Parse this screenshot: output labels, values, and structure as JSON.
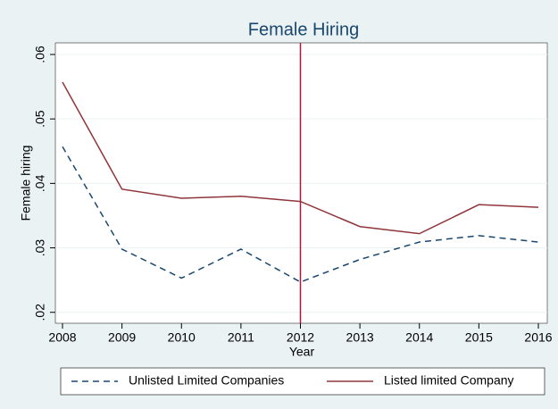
{
  "chart_data": {
    "type": "line",
    "title": "Female Hiring",
    "x_label": "Year",
    "y_label": "Female hiring",
    "x": [
      2008,
      2009,
      2010,
      2011,
      2012,
      2013,
      2014,
      2015,
      2016
    ],
    "series": [
      {
        "name": "Unlisted Limited Companies",
        "color": "#1a476f",
        "dash": true,
        "values": [
          0.0457,
          0.0298,
          0.0253,
          0.0298,
          0.0247,
          0.0282,
          0.0309,
          0.0319,
          0.0309
        ]
      },
      {
        "name": "Listed limited Company",
        "color": "#90353b",
        "dash": false,
        "values": [
          0.0557,
          0.0391,
          0.0377,
          0.038,
          0.0372,
          0.0333,
          0.0322,
          0.0367,
          0.0363
        ]
      }
    ],
    "xline": 2012,
    "xline_color": "#b0173f",
    "xlim": [
      2008,
      2016
    ],
    "xticks": [
      2008,
      2009,
      2010,
      2011,
      2012,
      2013,
      2014,
      2015,
      2016
    ],
    "ylim": [
      0.0183,
      0.0618
    ],
    "yticks": [
      {
        "value": 0.02,
        "label": ".02"
      },
      {
        "value": 0.03,
        "label": ".03"
      },
      {
        "value": 0.04,
        "label": ".04"
      },
      {
        "value": 0.05,
        "label": ".05"
      },
      {
        "value": 0.06,
        "label": ".06"
      }
    ],
    "grid": true,
    "legend": "bottom"
  }
}
